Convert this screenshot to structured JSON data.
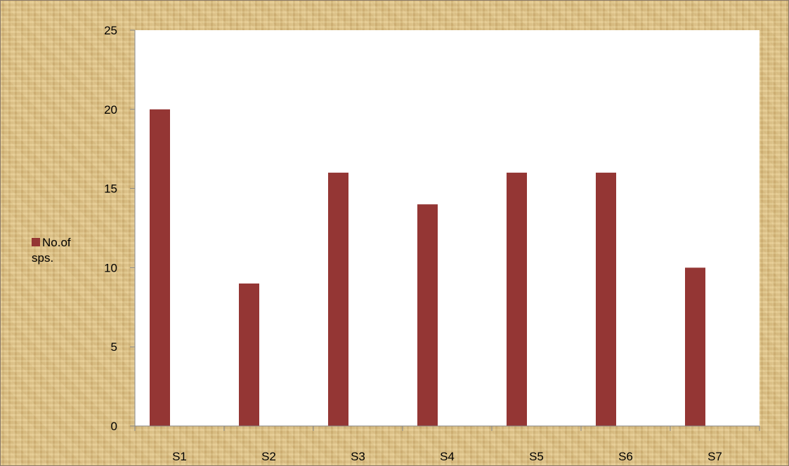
{
  "chart_data": {
    "type": "bar",
    "categories": [
      "S1",
      "S2",
      "S3",
      "S4",
      "S5",
      "S6",
      "S7"
    ],
    "series": [
      {
        "name": "No.of sps.",
        "values": [
          20,
          9,
          16,
          14,
          16,
          16,
          10
        ]
      }
    ],
    "title": "",
    "xlabel": "",
    "ylabel": "",
    "ylim": [
      0,
      25
    ],
    "yticks": [
      0,
      5,
      10,
      15,
      20,
      25
    ],
    "grid": false,
    "legend_position": "left",
    "colors": {
      "bar": "#943634",
      "plot_area": "#ffffff",
      "background": "#dcc083"
    }
  },
  "legend": {
    "swatch": "square",
    "label": "No.of sps."
  }
}
